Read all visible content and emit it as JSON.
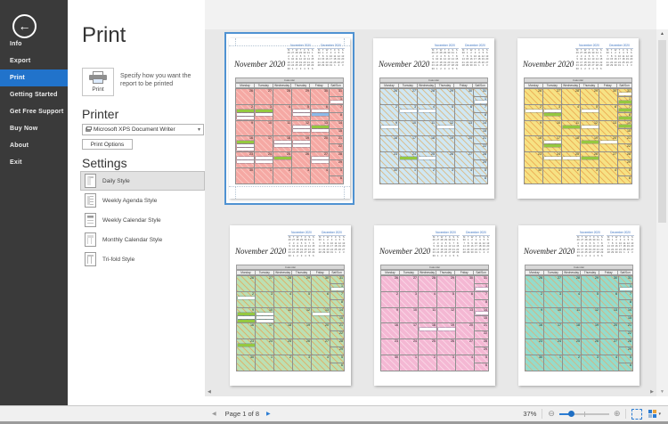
{
  "sidebar": {
    "items": [
      {
        "label": "Info",
        "active": false
      },
      {
        "label": "Export",
        "active": false
      },
      {
        "label": "Print",
        "active": true
      },
      {
        "label": "Getting Started",
        "active": false
      },
      {
        "label": "Get Free Support",
        "active": false
      },
      {
        "label": "Buy Now",
        "active": false
      },
      {
        "label": "About",
        "active": false
      },
      {
        "label": "Exit",
        "active": false
      }
    ]
  },
  "panel": {
    "title": "Print",
    "print_button_label": "Print",
    "print_description": "Specify how you want the report to be printed",
    "printer_heading": "Printer",
    "printer_selected": "Microsoft XPS Document Writer",
    "print_options_label": "Print Options",
    "settings_heading": "Settings",
    "styles": [
      {
        "label": "Daily Style",
        "icon": "daily",
        "selected": true
      },
      {
        "label": "Weekly Agenda Style",
        "icon": "weekly-agenda",
        "selected": false
      },
      {
        "label": "Weekly Calendar Style",
        "icon": "weekly-calendar",
        "selected": false
      },
      {
        "label": "Monthly Calendar Style",
        "icon": "monthly",
        "selected": false
      },
      {
        "label": "Tri-fold Style",
        "icon": "trifold",
        "selected": false
      }
    ]
  },
  "statusbar": {
    "page_label": "Page 1 of 8",
    "zoom_percent": "37%",
    "accent_color": "#2b7cd3"
  },
  "preview": {
    "weekdays": [
      "Monday",
      "Tuesday",
      "Wednesday",
      "Thursday",
      "Friday",
      "Sat/Sun"
    ],
    "band_label": "Calendar",
    "mini_calendars": [
      {
        "title": "November 2020",
        "initials": [
          "M",
          "T",
          "W",
          "T",
          "F",
          "S",
          "S"
        ],
        "rows": [
          [
            "26",
            "27",
            "28",
            "29",
            "30",
            "31",
            "1"
          ],
          [
            "2",
            "3",
            "4",
            "5",
            "6",
            "7",
            "8"
          ],
          [
            "9",
            "10",
            "11",
            "12",
            "13",
            "14",
            "15"
          ],
          [
            "16",
            "17",
            "18",
            "19",
            "20",
            "21",
            "22"
          ],
          [
            "23",
            "24",
            "25",
            "26",
            "27",
            "28",
            "29"
          ],
          [
            "30",
            "1",
            "2",
            "3",
            "4",
            "5",
            "6"
          ]
        ]
      },
      {
        "title": "December 2020",
        "initials": [
          "M",
          "T",
          "W",
          "T",
          "F",
          "S",
          "S"
        ],
        "rows": [
          [
            "30",
            "1",
            "2",
            "3",
            "4",
            "5",
            "6"
          ],
          [
            "7",
            "8",
            "9",
            "10",
            "11",
            "12",
            "13"
          ],
          [
            "14",
            "15",
            "16",
            "17",
            "18",
            "19",
            "20"
          ],
          [
            "21",
            "22",
            "23",
            "24",
            "25",
            "26",
            "27"
          ],
          [
            "28",
            "29",
            "30",
            "31",
            "1",
            "2",
            "3"
          ]
        ]
      }
    ],
    "weeks": [
      {
        "days": [
          "26",
          "27",
          "28",
          "29",
          "30"
        ],
        "sat": "31",
        "sun": "1"
      },
      {
        "days": [
          "2",
          "3",
          "4",
          "5",
          "6"
        ],
        "sat": "7",
        "sun": "8"
      },
      {
        "days": [
          "9",
          "10",
          "11",
          "12",
          "13"
        ],
        "sat": "14",
        "sun": "15"
      },
      {
        "days": [
          "16",
          "17",
          "18",
          "19",
          "20"
        ],
        "sat": "21",
        "sun": "22"
      },
      {
        "days": [
          "23",
          "24",
          "25",
          "26",
          "27"
        ],
        "sat": "28",
        "sun": "29"
      },
      {
        "days": [
          "30",
          "1",
          "2",
          "3",
          "4"
        ],
        "sat": "5",
        "sun": "6"
      }
    ],
    "event_colors": {
      "white": "#ffffff",
      "green": "#94c840",
      "blue": "#8cbae9"
    },
    "pages": [
      {
        "title": "November 2020",
        "selected": true,
        "color": "#f5a8a3",
        "hatch": "#f9c5bf",
        "events": [
          {
            "week": 0,
            "col": "sun",
            "bars": [
              "white"
            ]
          },
          {
            "week": 1,
            "col": 0,
            "bars": [
              "green",
              "white",
              "white"
            ]
          },
          {
            "week": 1,
            "col": 1,
            "bars": [
              "green",
              "white"
            ]
          },
          {
            "week": 1,
            "col": 3,
            "bars": [
              "white",
              "white"
            ]
          },
          {
            "week": 1,
            "col": 4,
            "bars": [
              "white",
              "blue"
            ]
          },
          {
            "week": 2,
            "col": 3,
            "bars": [
              "white",
              "white"
            ]
          },
          {
            "week": 2,
            "col": 4,
            "bars": [
              "green",
              "white"
            ]
          },
          {
            "week": 3,
            "col": 0,
            "bars": [
              "green",
              "white",
              "white"
            ]
          },
          {
            "week": 3,
            "col": 2,
            "bars": [
              "white",
              "white"
            ]
          },
          {
            "week": 3,
            "col": 3,
            "bars": [
              "white",
              "white"
            ]
          },
          {
            "week": 4,
            "col": 0,
            "bars": [
              "white",
              "white"
            ]
          },
          {
            "week": 4,
            "col": 1,
            "bars": [
              "white",
              "white"
            ]
          },
          {
            "week": 4,
            "col": 2,
            "bars": [
              "green"
            ]
          },
          {
            "week": 4,
            "col": 4,
            "bars": [
              "white",
              "white"
            ]
          }
        ]
      },
      {
        "title": "November 2020",
        "selected": false,
        "color": "#cfe7f3",
        "hatch": "#d9c094",
        "events": [
          {
            "week": 0,
            "col": "sun",
            "bars": [
              "white"
            ]
          },
          {
            "week": 1,
            "col": 1,
            "bars": [
              "white"
            ]
          },
          {
            "week": 1,
            "col": 2,
            "bars": [
              "white"
            ]
          },
          {
            "week": 2,
            "col": 0,
            "bars": [
              "white"
            ]
          },
          {
            "week": 2,
            "col": 3,
            "bars": [
              "white"
            ]
          },
          {
            "week": 4,
            "col": 1,
            "bars": [
              "green"
            ]
          },
          {
            "week": 4,
            "col": 2,
            "bars": [
              "white"
            ]
          }
        ]
      },
      {
        "title": "November 2020",
        "selected": false,
        "color": "#f6e284",
        "hatch": "#edb45a",
        "events": [
          {
            "week": 0,
            "col": "sat",
            "bars": [
              "white"
            ]
          },
          {
            "week": 0,
            "col": "sun",
            "bars": [
              "green"
            ]
          },
          {
            "week": 1,
            "col": 0,
            "bars": [
              "white"
            ]
          },
          {
            "week": 1,
            "col": 1,
            "bars": [
              "white",
              "green"
            ]
          },
          {
            "week": 1,
            "col": 3,
            "bars": [
              "white"
            ]
          },
          {
            "week": 1,
            "col": "sat",
            "bars": [
              "green"
            ]
          },
          {
            "week": 1,
            "col": "sun",
            "bars": [
              "green"
            ]
          },
          {
            "week": 2,
            "col": 2,
            "bars": [
              "green"
            ]
          },
          {
            "week": 2,
            "col": 3,
            "bars": [
              "white"
            ]
          },
          {
            "week": 2,
            "col": "sat",
            "bars": [
              "green"
            ]
          },
          {
            "week": 3,
            "col": 1,
            "bars": [
              "white",
              "green"
            ]
          },
          {
            "week": 3,
            "col": 3,
            "bars": [
              "green"
            ]
          },
          {
            "week": 3,
            "col": 4,
            "bars": [
              "white"
            ]
          },
          {
            "week": 4,
            "col": 1,
            "bars": [
              "white"
            ]
          },
          {
            "week": 4,
            "col": 2,
            "bars": [
              "white"
            ]
          },
          {
            "week": 4,
            "col": 3,
            "bars": [
              "green"
            ]
          }
        ]
      },
      {
        "title": "November 2020",
        "selected": false,
        "color": "#bbe0b3",
        "hatch": "#dcb46e",
        "events": [
          {
            "week": 0,
            "col": "sun",
            "bars": [
              "white"
            ]
          },
          {
            "week": 1,
            "col": 0,
            "bars": [
              "white"
            ]
          },
          {
            "week": 2,
            "col": 0,
            "bars": [
              "green",
              "white",
              "green"
            ]
          },
          {
            "week": 2,
            "col": 1,
            "bars": [
              "white",
              "white",
              "white"
            ]
          },
          {
            "week": 2,
            "col": 4,
            "bars": [
              "white"
            ]
          },
          {
            "week": 4,
            "col": 0,
            "bars": [
              "green"
            ]
          }
        ]
      },
      {
        "title": "November 2020",
        "selected": false,
        "color": "#f4b7d3",
        "hatch": "#f9d3e4",
        "events": [
          {
            "week": 0,
            "col": "sun",
            "bars": [
              "white"
            ]
          },
          {
            "week": 2,
            "col": "sat",
            "bars": [
              "white"
            ]
          },
          {
            "week": 3,
            "col": 2,
            "bars": [
              "white"
            ]
          },
          {
            "week": 3,
            "col": 3,
            "bars": [
              "white"
            ]
          }
        ]
      },
      {
        "title": "November 2020",
        "selected": false,
        "color": "#93dccc",
        "hatch": "#cdb98b",
        "events": [
          {
            "week": 0,
            "col": "sun",
            "bars": [
              "white"
            ]
          }
        ]
      }
    ]
  }
}
